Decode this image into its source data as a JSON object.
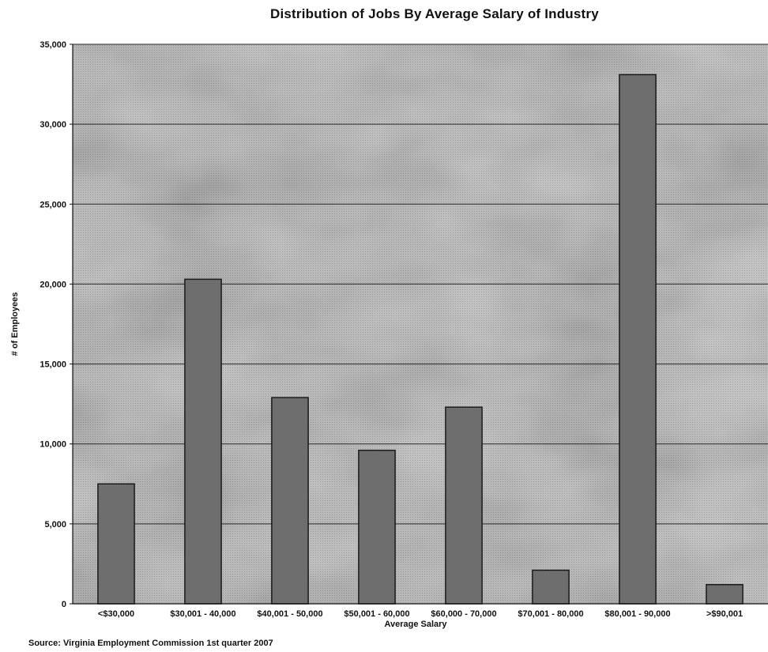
{
  "chart_data": {
    "type": "bar",
    "title": "Distribution of Jobs By Average Salary of Industry",
    "xlabel": "Average Salary",
    "ylabel": "# of Employees",
    "categories": [
      "<$30,000",
      "$30,001 - 40,000",
      "$40,001 - 50,000",
      "$50,001 - 60,000",
      "$60,000 - 70,000",
      "$70,001 - 80,000",
      "$80,001 - 90,000",
      ">$90,001"
    ],
    "values": [
      7500,
      20300,
      12900,
      9600,
      12300,
      2100,
      33100,
      1200
    ],
    "ylim": [
      0,
      35000
    ],
    "yticks": [
      0,
      5000,
      10000,
      15000,
      20000,
      25000,
      30000,
      35000
    ],
    "ytick_labels": [
      "0",
      "5,000",
      "10,000",
      "15,000",
      "20,000",
      "25,000",
      "30,000",
      "35,000"
    ],
    "grid": true,
    "legend": "none",
    "colors": {
      "plot_bg": "#b4b4b4",
      "bar": "#6e6e6e",
      "bar_edge": "#1a1a1a",
      "grid": "#2a2a2a"
    }
  },
  "source_note": "Source: Virginia Employment Commission 1st quarter 2007"
}
